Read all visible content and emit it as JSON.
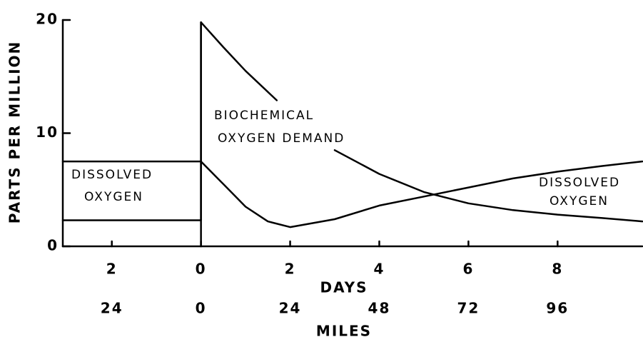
{
  "chart_data": {
    "type": "line",
    "ylabel": "PARTS PER MILLION",
    "xlabel": "DAYS",
    "x2label": "MILES",
    "xlim": [
      -3.1,
      9.9
    ],
    "ylim": [
      0,
      20
    ],
    "x2lim": [
      -37.2,
      118.8
    ],
    "yticks": [
      0,
      10,
      20
    ],
    "xticks": [
      {
        "value": -2,
        "label": "2"
      },
      0,
      2,
      4,
      6,
      8
    ],
    "x2ticks": [
      {
        "value": -24,
        "label": "24"
      },
      0,
      24,
      48,
      72,
      96
    ],
    "series": [
      {
        "name": "BIOCHEMICAL OXYGEN DEMAND",
        "color": "#000000",
        "x": [
          -3.1,
          0,
          0,
          0.5,
          1,
          1.7,
          null,
          3,
          4,
          5,
          6,
          7,
          8,
          9,
          9.9
        ],
        "values": [
          2.3,
          2.3,
          19.8,
          17.6,
          15.5,
          12.9,
          null,
          8.5,
          6.4,
          4.8,
          3.8,
          3.2,
          2.8,
          2.5,
          2.2
        ]
      },
      {
        "name": "DISSOLVED OXYGEN",
        "color": "#000000",
        "x": [
          -3.1,
          0,
          0.5,
          1,
          1.5,
          2,
          3,
          4,
          5,
          6,
          7,
          8,
          9,
          9.9
        ],
        "values": [
          7.5,
          7.5,
          5.5,
          3.5,
          2.2,
          1.7,
          2.4,
          3.6,
          4.4,
          5.2,
          6.0,
          6.6,
          7.1,
          7.5
        ]
      }
    ],
    "annotations": [
      "BIOCHEMICAL",
      "OXYGEN DEMAND",
      "DISSOLVED",
      "OXYGEN",
      "DISSOLVED",
      "OXYGEN"
    ]
  }
}
